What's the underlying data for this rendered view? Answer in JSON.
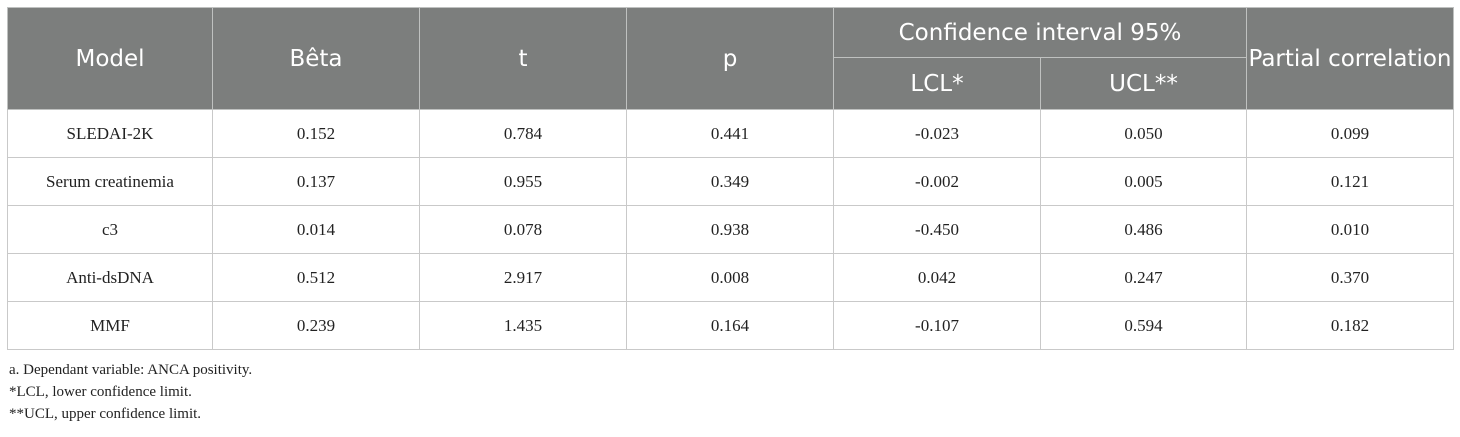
{
  "table": {
    "headers": {
      "model": "Model",
      "beta": "Bêta",
      "t": "t",
      "p": "p",
      "ci_group": "Confidence interval 95%",
      "lcl": "LCL*",
      "ucl": "UCL**",
      "partial_correlation": "Partial correlation"
    },
    "rows": [
      [
        "SLEDAI-2K",
        "0.152",
        "0.784",
        "0.441",
        "-0.023",
        "0.050",
        "0.099"
      ],
      [
        "Serum creatinemia",
        "0.137",
        "0.955",
        "0.349",
        "-0.002",
        "0.005",
        "0.121"
      ],
      [
        "c3",
        "0.014",
        "0.078",
        "0.938",
        "-0.450",
        "0.486",
        "0.010"
      ],
      [
        "Anti-dsDNA",
        "0.512",
        "2.917",
        "0.008",
        "0.042",
        "0.247",
        "0.370"
      ],
      [
        "MMF",
        "0.239",
        "1.435",
        "0.164",
        "-0.107",
        "0.594",
        "0.182"
      ]
    ]
  },
  "footnotes": [
    "a. Dependant variable: ANCA positivity.",
    "*LCL, lower confidence limit.",
    "**UCL, upper confidence limit."
  ],
  "colors": {
    "header_bg": "#7c7e7d",
    "header_text": "#ffffff",
    "grid": "#c9c9c9"
  }
}
